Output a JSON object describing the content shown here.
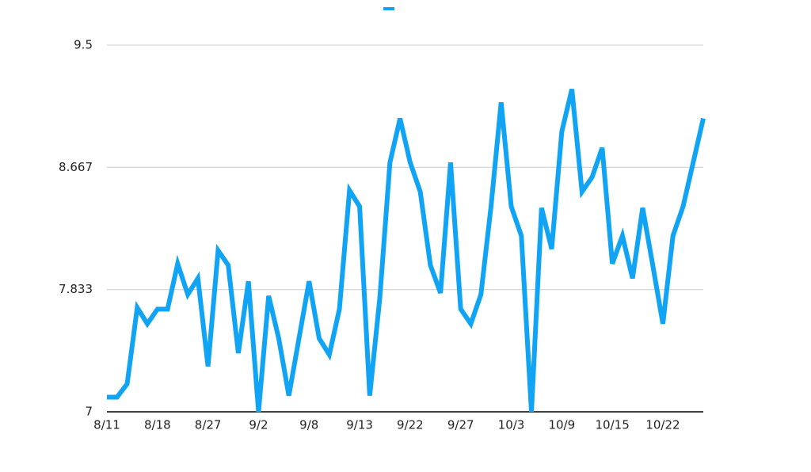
{
  "chart_data": {
    "type": "line",
    "categories": [
      "8/11",
      null,
      null,
      null,
      null,
      "8/18",
      null,
      null,
      null,
      null,
      "8/27",
      null,
      null,
      null,
      null,
      "9/2",
      null,
      null,
      null,
      null,
      "9/8",
      null,
      null,
      null,
      null,
      "9/13",
      null,
      null,
      null,
      null,
      "9/22",
      null,
      null,
      null,
      null,
      "9/27",
      null,
      null,
      null,
      null,
      "10/3",
      null,
      null,
      null,
      null,
      "10/9",
      null,
      null,
      null,
      null,
      "10/15",
      null,
      null,
      null,
      null,
      "10/22",
      null,
      null,
      null,
      null
    ],
    "series": [
      {
        "color": "#12a4f4",
        "values": [
          7.1,
          7.1,
          7.19,
          7.71,
          7.6,
          7.7,
          7.7,
          8.01,
          7.8,
          7.91,
          7.31,
          8.1,
          8.0,
          7.4,
          7.89,
          7.0,
          7.79,
          7.5,
          7.11,
          7.5,
          7.89,
          7.5,
          7.39,
          7.7,
          8.51,
          8.4,
          7.11,
          7.78,
          8.7,
          9.0,
          8.7,
          8.5,
          8.0,
          7.81,
          8.7,
          7.7,
          7.6,
          7.8,
          8.4,
          9.11,
          8.4,
          8.2,
          7.0,
          8.39,
          8.11,
          8.91,
          9.2,
          8.5,
          8.6,
          8.8,
          8.01,
          8.2,
          7.91,
          8.39,
          8.0,
          7.6,
          8.2,
          8.4,
          8.7,
          9.0
        ]
      }
    ],
    "ylim": [
      7,
      9.5
    ],
    "yticks": [
      7,
      7.833,
      8.667,
      9.5
    ],
    "grid": true
  }
}
